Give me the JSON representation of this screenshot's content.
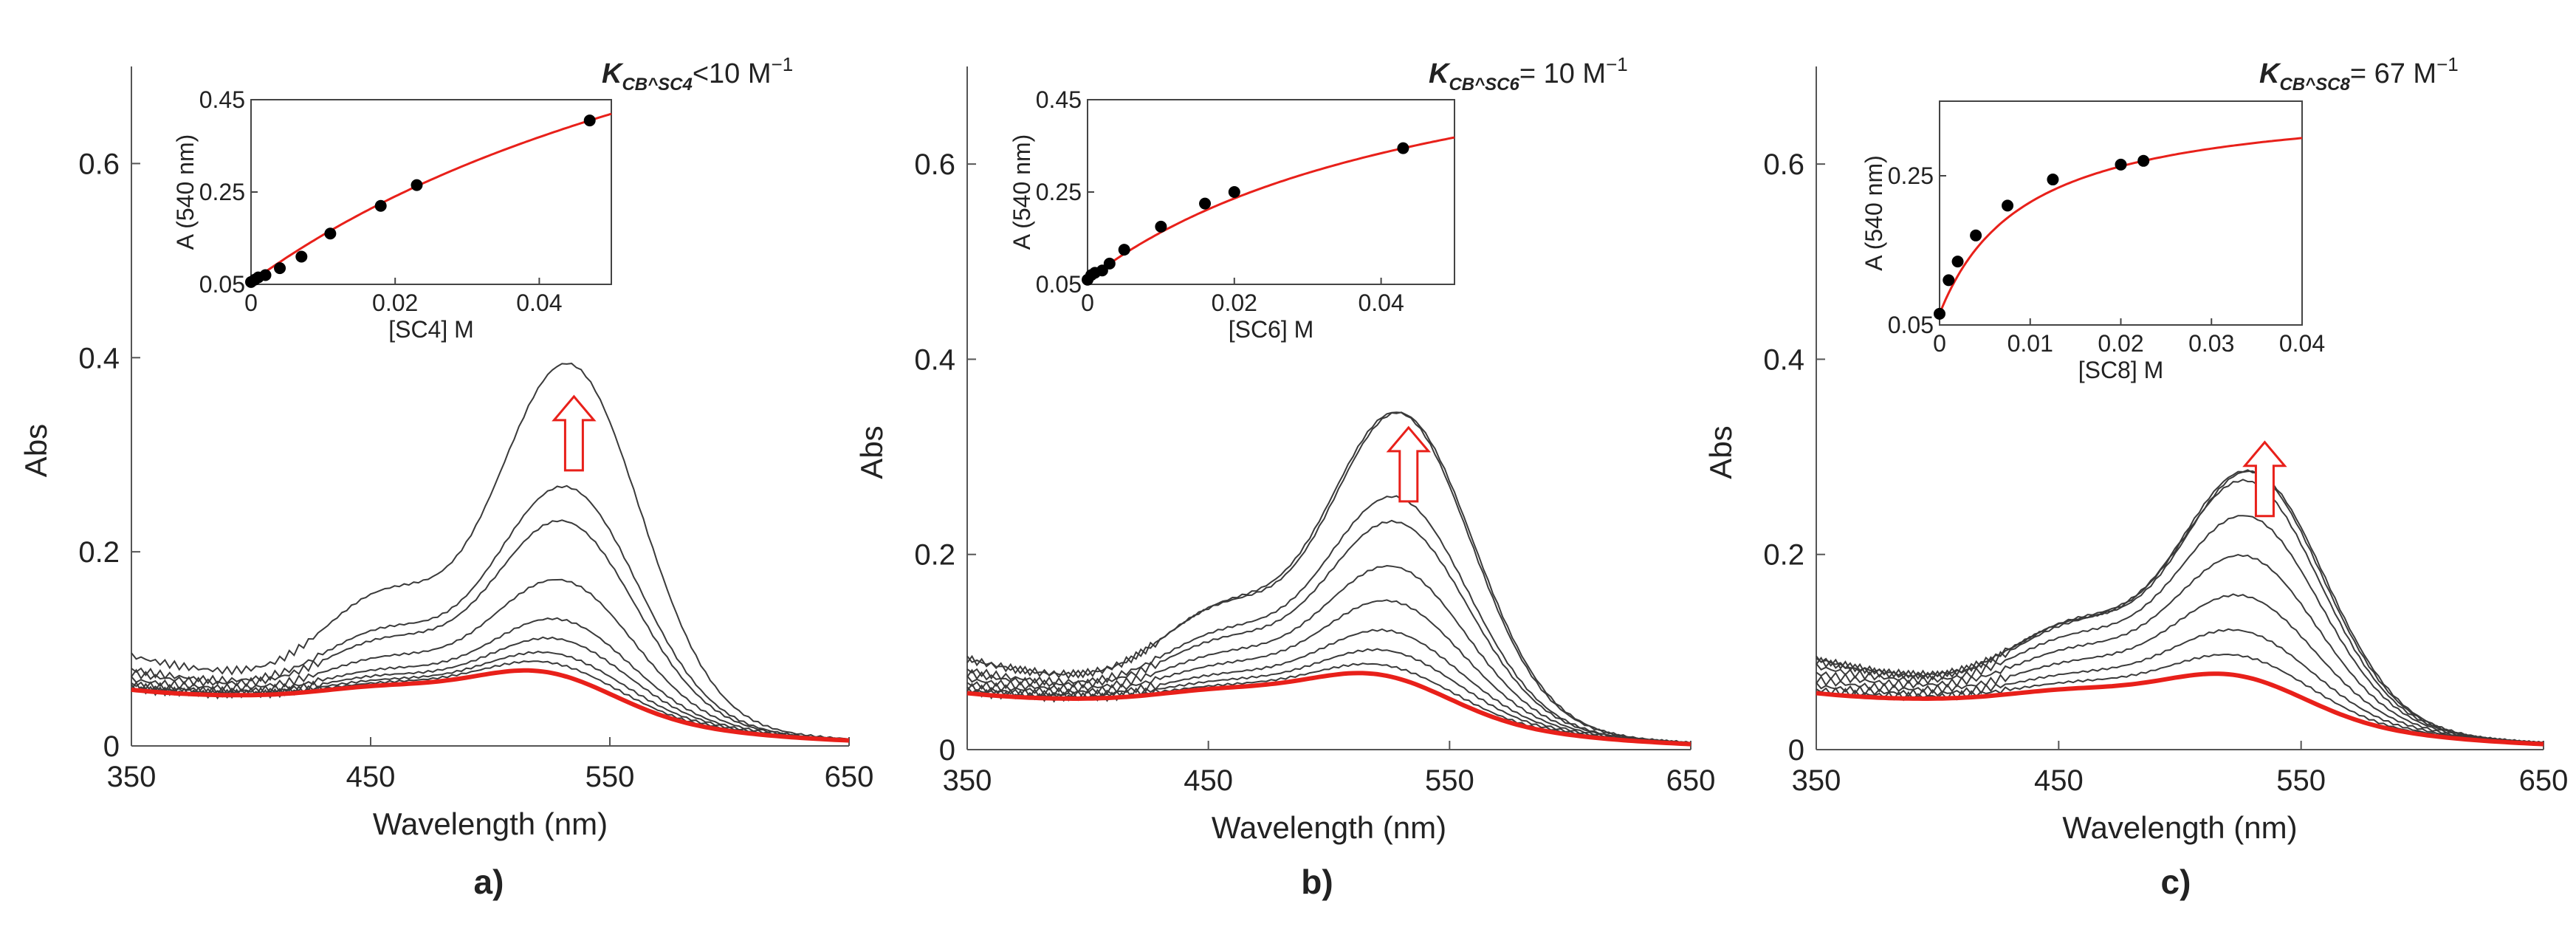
{
  "figure": {
    "panels": [
      {
        "letter": "a)",
        "main": {
          "xlabel": "Wavelength (nm)",
          "ylabel": "Abs",
          "xlim": [
            350,
            650
          ],
          "ylim": [
            0,
            0.7
          ],
          "xticks": [
            "350",
            "450",
            "550",
            "650"
          ],
          "yticks": [
            "0",
            "0.2",
            "0.4",
            "0.6"
          ]
        },
        "k_label": {
          "k": "K",
          "sub": "CB^SC4",
          "rel": "<",
          "value": "10 M",
          "sup": "−1"
        },
        "inset": {
          "xlabel": "[SC4] M",
          "ylabel": "A (540 nm)",
          "xlim": [
            0,
            0.05
          ],
          "ylim": [
            0.05,
            0.45
          ],
          "xticks": [
            "0",
            "0.02",
            "0.04"
          ],
          "yticks": [
            "0.05",
            "0.25",
            "0.45"
          ]
        }
      },
      {
        "letter": "b)",
        "main": {
          "xlabel": "Wavelength (nm)",
          "ylabel": "Abs",
          "xlim": [
            350,
            650
          ],
          "ylim": [
            0,
            0.7
          ],
          "xticks": [
            "350",
            "450",
            "550",
            "650"
          ],
          "yticks": [
            "0",
            "0.2",
            "0.4",
            "0.6"
          ]
        },
        "k_label": {
          "k": "K",
          "sub": "CB^SC6",
          "rel": "=",
          "value": " 10 M",
          "sup": "−1"
        },
        "inset": {
          "xlabel": "[SC6] M",
          "ylabel": "A (540 nm)",
          "xlim": [
            0,
            0.05
          ],
          "ylim": [
            0.05,
            0.45
          ],
          "xticks": [
            "0",
            "0.02",
            "0.04"
          ],
          "yticks": [
            "0.05",
            "0.25",
            "0.45"
          ]
        }
      },
      {
        "letter": "c)",
        "main": {
          "xlabel": "Wavelength (nm)",
          "ylabel": "Abs",
          "xlim": [
            350,
            650
          ],
          "ylim": [
            0,
            0.7
          ],
          "xticks": [
            "350",
            "450",
            "550",
            "650"
          ],
          "yticks": [
            "0",
            "0.2",
            "0.4",
            "0.6"
          ]
        },
        "k_label": {
          "k": "K",
          "sub": "CB^SC8",
          "rel": "=",
          "value": " 67 M",
          "sup": "−1"
        },
        "inset": {
          "xlabel": "[SC8] M",
          "ylabel": "A (540 nm)",
          "xlim": [
            0,
            0.04
          ],
          "ylim": [
            0.05,
            0.35
          ],
          "xticks": [
            "0",
            "0.01",
            "0.02",
            "0.03",
            "0.04"
          ],
          "yticks": [
            "0.05",
            "0.25"
          ]
        }
      }
    ]
  },
  "chart_data": [
    {
      "type": "line",
      "title": "a)",
      "xlabel": "Wavelength (nm)",
      "ylabel": "Abs",
      "xlim": [
        350,
        650
      ],
      "ylim": [
        0,
        0.7
      ],
      "peak_wavelengths_nm": [
        522,
        524,
        526,
        528,
        529,
        530,
        531,
        532,
        533
      ],
      "peak_values": [
        0.08,
        0.09,
        0.1,
        0.115,
        0.135,
        0.175,
        0.235,
        0.27,
        0.395
      ],
      "series_note": "titration spectra; baseline (red, thick) peak ~0.08 at ~522 nm; increasing [SC4] raises the band near 530 nm",
      "baseline_color": "#e8201a",
      "arrow": "up at ~535 nm",
      "inset": {
        "type": "scatter",
        "xlabel": "[SC4] M",
        "ylabel": "A (540 nm)",
        "x": [
          0,
          0.0005,
          0.001,
          0.002,
          0.004,
          0.007,
          0.011,
          0.018,
          0.023,
          0.047
        ],
        "y": [
          0.055,
          0.06,
          0.065,
          0.07,
          0.085,
          0.11,
          0.16,
          0.22,
          0.265,
          0.405
        ],
        "fit_color": "#e8201a",
        "K": "<10 M^-1"
      }
    },
    {
      "type": "line",
      "title": "b)",
      "xlabel": "Wavelength (nm)",
      "ylabel": "Abs",
      "xlim": [
        350,
        650
      ],
      "ylim": [
        0,
        0.7
      ],
      "peak_wavelengths_nm": [
        520,
        522,
        524,
        525,
        526,
        527,
        528,
        528,
        529,
        530
      ],
      "peak_values": [
        0.08,
        0.09,
        0.105,
        0.125,
        0.155,
        0.19,
        0.235,
        0.26,
        0.345,
        0.345
      ],
      "series_note": "titration spectra; baseline (red, thick) peak ~0.08; increasing [SC6] raises the band near 530 nm",
      "baseline_color": "#e8201a",
      "arrow": "up at ~532 nm",
      "inset": {
        "type": "scatter",
        "xlabel": "[SC6] M",
        "ylabel": "A (540 nm)",
        "x": [
          0,
          0.0005,
          0.001,
          0.002,
          0.003,
          0.005,
          0.01,
          0.016,
          0.02,
          0.043
        ],
        "y": [
          0.06,
          0.07,
          0.075,
          0.08,
          0.095,
          0.125,
          0.175,
          0.225,
          0.25,
          0.345
        ],
        "fit_color": "#e8201a",
        "K": "10 M^-1"
      }
    },
    {
      "type": "line",
      "title": "c)",
      "xlabel": "Wavelength (nm)",
      "ylabel": "Abs",
      "xlim": [
        350,
        650
      ],
      "ylim": [
        0,
        0.7
      ],
      "peak_wavelengths_nm": [
        522,
        524,
        525,
        526,
        527,
        528,
        528,
        529,
        530
      ],
      "peak_values": [
        0.08,
        0.1,
        0.125,
        0.16,
        0.2,
        0.24,
        0.275,
        0.285,
        0.285
      ],
      "series_note": "titration spectra; baseline (red, thick) peak ~0.08; increasing [SC8] raises the band near 530 nm",
      "baseline_color": "#e8201a",
      "arrow": "up at ~535 nm",
      "inset": {
        "type": "scatter",
        "xlabel": "[SC8] M",
        "ylabel": "A (540 nm)",
        "x": [
          0,
          0.001,
          0.002,
          0.004,
          0.0075,
          0.0125,
          0.02,
          0.0225
        ],
        "y": [
          0.065,
          0.11,
          0.135,
          0.17,
          0.21,
          0.245,
          0.265,
          0.27
        ],
        "fit_color": "#e8201a",
        "K": "67 M^-1"
      }
    }
  ]
}
